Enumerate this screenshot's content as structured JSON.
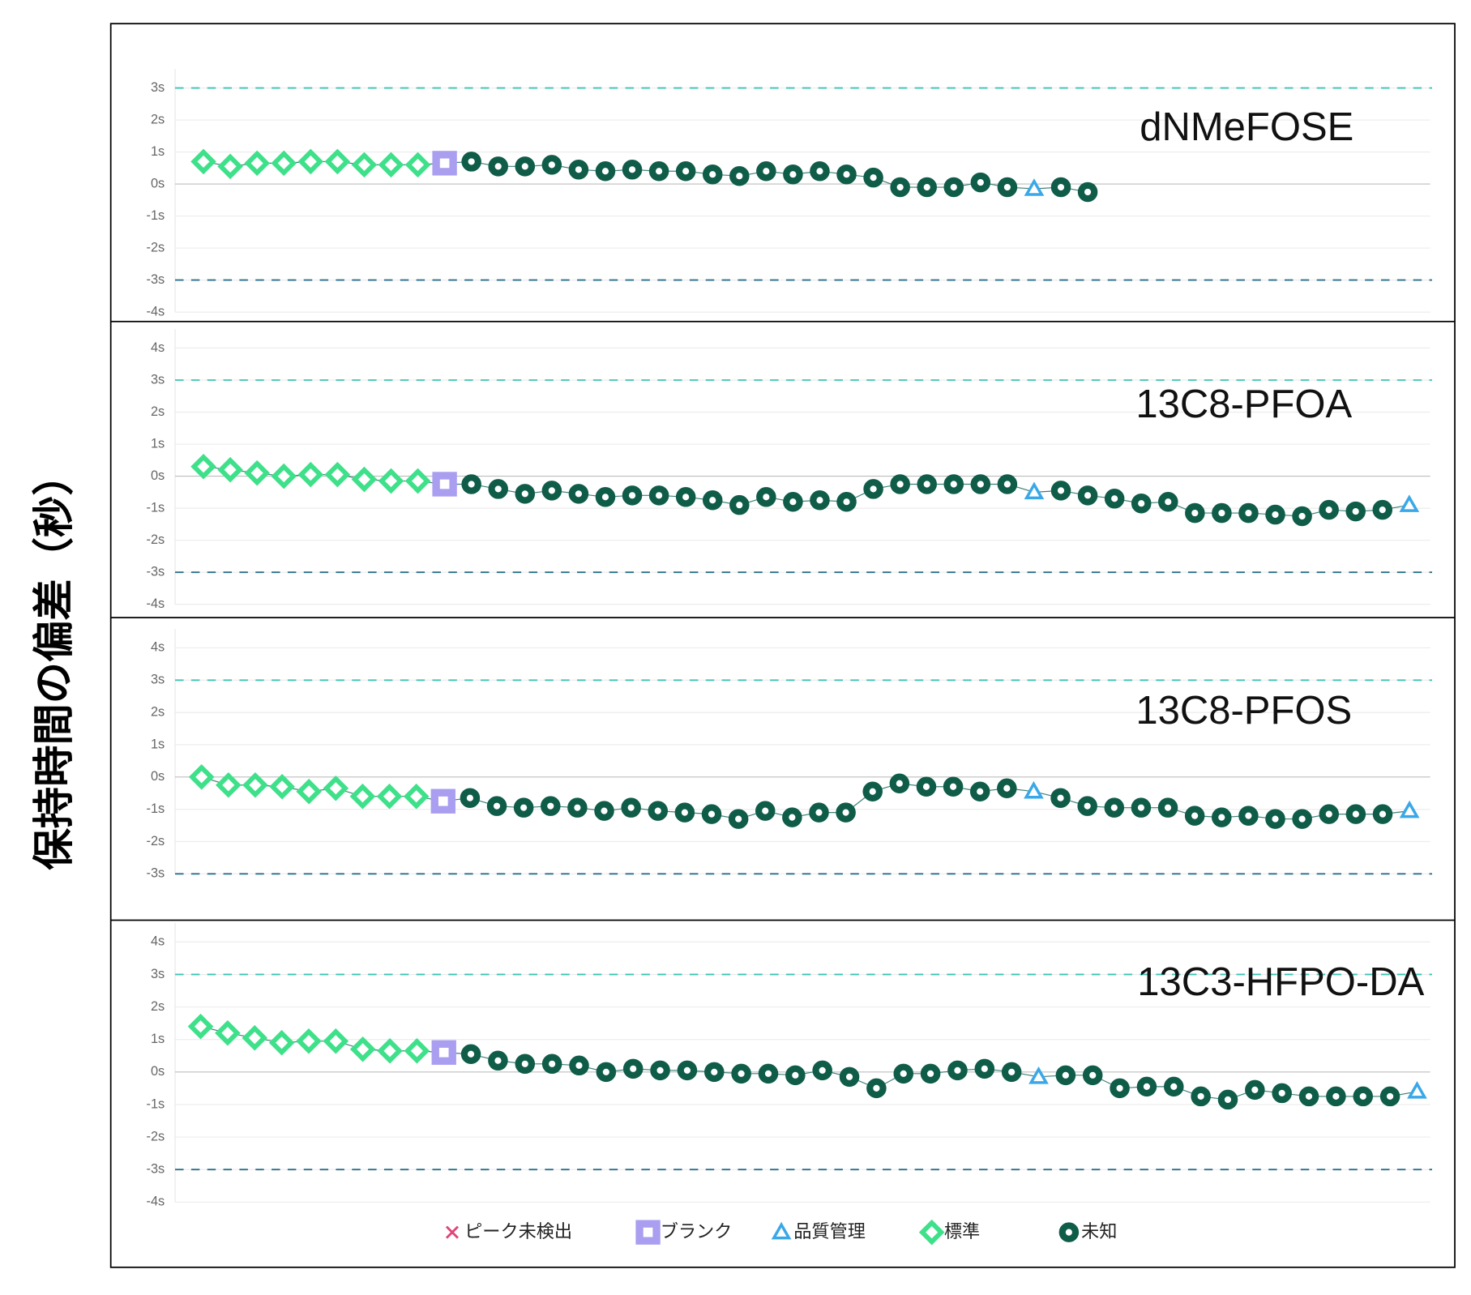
{
  "y_axis_title": "保持時間の偏差（秒）",
  "legend": [
    {
      "name": "ピーク未検出",
      "color": "#e0457b",
      "marker": "x"
    },
    {
      "name": "ブランク",
      "color": "#a99ef0",
      "marker": "square"
    },
    {
      "name": "品質管理",
      "color": "#3aa8e8",
      "marker": "triangle"
    },
    {
      "name": "標準",
      "color": "#3ee08a",
      "marker": "diamond"
    },
    {
      "name": "未知",
      "color": "#0f5c48",
      "marker": "circle"
    }
  ],
  "chart_data": [
    {
      "type": "line",
      "title": "dNMeFOSE",
      "ylim": [
        -4,
        3
      ],
      "grid": true,
      "limit_lines": [
        3,
        -3
      ],
      "yticks": [
        {
          "value": 3,
          "label": "3s"
        },
        {
          "value": 2,
          "label": "2s"
        },
        {
          "value": 1,
          "label": "1s"
        },
        {
          "value": 0,
          "label": "0s"
        },
        {
          "value": -1,
          "label": "-1s"
        },
        {
          "value": -2,
          "label": "-2s"
        },
        {
          "value": -3,
          "label": "-3s"
        },
        {
          "value": -4,
          "label": "-4s"
        }
      ],
      "series": [
        {
          "name": "標準",
          "values": [
            0.7,
            0.55,
            0.65,
            0.65,
            0.7,
            0.7,
            0.6,
            0.6,
            0.6,
            null,
            null,
            null,
            null,
            null,
            null,
            null,
            null,
            null,
            null,
            null,
            null,
            null,
            null,
            null,
            null,
            null,
            null,
            null,
            null,
            null,
            null,
            null,
            null,
            null
          ]
        },
        {
          "name": "ブランク",
          "values": [
            null,
            null,
            null,
            null,
            null,
            null,
            null,
            null,
            null,
            0.65,
            null,
            null,
            null,
            null,
            null,
            null,
            null,
            null,
            null,
            null,
            null,
            null,
            null,
            null,
            null,
            null,
            null,
            null,
            null,
            null,
            null,
            null,
            null,
            null
          ]
        },
        {
          "name": "未知",
          "values": [
            null,
            null,
            null,
            null,
            null,
            null,
            null,
            null,
            null,
            null,
            0.7,
            0.55,
            0.55,
            0.6,
            0.45,
            0.4,
            0.45,
            0.4,
            0.4,
            0.3,
            0.25,
            0.4,
            0.3,
            0.4,
            0.3,
            0.2,
            -0.1,
            -0.1,
            -0.1,
            0.05,
            -0.1,
            null,
            -0.1,
            -0.25
          ]
        },
        {
          "name": "品質管理",
          "values": [
            null,
            null,
            null,
            null,
            null,
            null,
            null,
            null,
            null,
            null,
            null,
            null,
            null,
            null,
            null,
            null,
            null,
            null,
            null,
            null,
            null,
            null,
            null,
            null,
            null,
            null,
            null,
            null,
            null,
            null,
            null,
            -0.15,
            null,
            null
          ]
        }
      ]
    },
    {
      "type": "line",
      "title": "13C8-PFOA",
      "ylim": [
        -4,
        4
      ],
      "grid": true,
      "limit_lines": [
        3,
        -3
      ],
      "yticks": [
        {
          "value": 4,
          "label": "4s"
        },
        {
          "value": 3,
          "label": "3s"
        },
        {
          "value": 2,
          "label": "2s"
        },
        {
          "value": 1,
          "label": "1s"
        },
        {
          "value": 0,
          "label": "0s"
        },
        {
          "value": -1,
          "label": "-1s"
        },
        {
          "value": -2,
          "label": "-2s"
        },
        {
          "value": -3,
          "label": "-3s"
        },
        {
          "value": -4,
          "label": "-4s"
        }
      ],
      "series": [
        {
          "name": "標準",
          "values": [
            0.3,
            0.2,
            0.1,
            0,
            0.05,
            0.05,
            -0.1,
            -0.15,
            -0.15,
            null,
            null,
            null,
            null,
            null,
            null,
            null,
            null,
            null,
            null,
            null,
            null,
            null,
            null,
            null,
            null,
            null,
            null,
            null,
            null,
            null,
            null,
            null,
            null,
            null,
            null,
            null,
            null,
            null,
            null,
            null,
            null,
            null,
            null,
            null,
            null,
            null
          ]
        },
        {
          "name": "ブランク",
          "values": [
            null,
            null,
            null,
            null,
            null,
            null,
            null,
            null,
            null,
            -0.25,
            null,
            null,
            null,
            null,
            null,
            null,
            null,
            null,
            null,
            null,
            null,
            null,
            null,
            null,
            null,
            null,
            null,
            null,
            null,
            null,
            null,
            null,
            null,
            null,
            null,
            null,
            null,
            null,
            null,
            null,
            null,
            null,
            null,
            null,
            null,
            null
          ]
        },
        {
          "name": "未知",
          "values": [
            null,
            null,
            null,
            null,
            null,
            null,
            null,
            null,
            null,
            null,
            -0.25,
            -0.4,
            -0.55,
            -0.45,
            -0.55,
            -0.65,
            -0.6,
            -0.6,
            -0.65,
            -0.75,
            -0.9,
            -0.65,
            -0.8,
            -0.75,
            -0.8,
            -0.4,
            -0.25,
            -0.25,
            -0.25,
            -0.25,
            -0.25,
            null,
            -0.45,
            -0.6,
            -0.7,
            -0.85,
            -0.8,
            -1.15,
            -1.15,
            -1.15,
            -1.2,
            -1.25,
            -1.05,
            -1.1,
            -1.05,
            null
          ]
        },
        {
          "name": "品質管理",
          "values": [
            null,
            null,
            null,
            null,
            null,
            null,
            null,
            null,
            null,
            null,
            null,
            null,
            null,
            null,
            null,
            null,
            null,
            null,
            null,
            null,
            null,
            null,
            null,
            null,
            null,
            null,
            null,
            null,
            null,
            null,
            null,
            -0.5,
            null,
            null,
            null,
            null,
            null,
            null,
            null,
            null,
            null,
            null,
            null,
            null,
            null,
            -0.9
          ]
        }
      ]
    },
    {
      "type": "line",
      "title": "13C8-PFOS",
      "ylim": [
        -3,
        4
      ],
      "grid": true,
      "limit_lines": [
        3,
        -3
      ],
      "yticks": [
        {
          "value": 4,
          "label": "4s"
        },
        {
          "value": 3,
          "label": "3s"
        },
        {
          "value": 2,
          "label": "2s"
        },
        {
          "value": 1,
          "label": "1s"
        },
        {
          "value": 0,
          "label": "0s"
        },
        {
          "value": -1,
          "label": "-1s"
        },
        {
          "value": -2,
          "label": "-2s"
        },
        {
          "value": -3,
          "label": "-3s"
        }
      ],
      "series": [
        {
          "name": "標準",
          "values": [
            0,
            -0.25,
            -0.25,
            -0.3,
            -0.45,
            -0.35,
            -0.6,
            -0.6,
            -0.6,
            null,
            null,
            null,
            null,
            null,
            null,
            null,
            null,
            null,
            null,
            null,
            null,
            null,
            null,
            null,
            null,
            null,
            null,
            null,
            null,
            null,
            null,
            null,
            null,
            null,
            null,
            null,
            null,
            null,
            null,
            null,
            null,
            null,
            null,
            null,
            null,
            null
          ]
        },
        {
          "name": "ブランク",
          "values": [
            null,
            null,
            null,
            null,
            null,
            null,
            null,
            null,
            null,
            -0.75,
            null,
            null,
            null,
            null,
            null,
            null,
            null,
            null,
            null,
            null,
            null,
            null,
            null,
            null,
            null,
            null,
            null,
            null,
            null,
            null,
            null,
            null,
            null,
            null,
            null,
            null,
            null,
            null,
            null,
            null,
            null,
            null,
            null,
            null,
            null,
            null
          ]
        },
        {
          "name": "未知",
          "values": [
            null,
            null,
            null,
            null,
            null,
            null,
            null,
            null,
            null,
            null,
            -0.65,
            -0.9,
            -0.95,
            -0.9,
            -0.95,
            -1.05,
            -0.95,
            -1.05,
            -1.1,
            -1.15,
            -1.3,
            -1.05,
            -1.25,
            -1.1,
            -1.1,
            -0.45,
            -0.2,
            -0.3,
            -0.3,
            -0.45,
            -0.35,
            null,
            -0.65,
            -0.9,
            -0.95,
            -0.95,
            -0.95,
            -1.2,
            -1.25,
            -1.2,
            -1.3,
            -1.3,
            -1.15,
            -1.15,
            -1.15,
            null
          ]
        },
        {
          "name": "品質管理",
          "values": [
            null,
            null,
            null,
            null,
            null,
            null,
            null,
            null,
            null,
            null,
            null,
            null,
            null,
            null,
            null,
            null,
            null,
            null,
            null,
            null,
            null,
            null,
            null,
            null,
            null,
            null,
            null,
            null,
            null,
            null,
            null,
            -0.45,
            null,
            null,
            null,
            null,
            null,
            null,
            null,
            null,
            null,
            null,
            null,
            null,
            null,
            -1.05
          ]
        }
      ]
    },
    {
      "type": "line",
      "title": "13C3-HFPO-DA",
      "ylim": [
        -4,
        4
      ],
      "grid": true,
      "limit_lines": [
        3,
        -3
      ],
      "yticks": [
        {
          "value": 4,
          "label": "4s"
        },
        {
          "value": 3,
          "label": "3s"
        },
        {
          "value": 2,
          "label": "2s"
        },
        {
          "value": 1,
          "label": "1s"
        },
        {
          "value": 0,
          "label": "0s"
        },
        {
          "value": -1,
          "label": "-1s"
        },
        {
          "value": -2,
          "label": "-2s"
        },
        {
          "value": -3,
          "label": "-3s"
        },
        {
          "value": -4,
          "label": "-4s"
        }
      ],
      "series": [
        {
          "name": "標準",
          "values": [
            1.4,
            1.2,
            1.05,
            0.9,
            0.95,
            0.95,
            0.7,
            0.65,
            0.65,
            null,
            null,
            null,
            null,
            null,
            null,
            null,
            null,
            null,
            null,
            null,
            null,
            null,
            null,
            null,
            null,
            null,
            null,
            null,
            null,
            null,
            null,
            null,
            null,
            null,
            null,
            null,
            null,
            null,
            null,
            null,
            null,
            null,
            null,
            null,
            null,
            null
          ]
        },
        {
          "name": "ブランク",
          "values": [
            null,
            null,
            null,
            null,
            null,
            null,
            null,
            null,
            null,
            0.6,
            null,
            null,
            null,
            null,
            null,
            null,
            null,
            null,
            null,
            null,
            null,
            null,
            null,
            null,
            null,
            null,
            null,
            null,
            null,
            null,
            null,
            null,
            null,
            null,
            null,
            null,
            null,
            null,
            null,
            null,
            null,
            null,
            null,
            null,
            null,
            null
          ]
        },
        {
          "name": "未知",
          "values": [
            null,
            null,
            null,
            null,
            null,
            null,
            null,
            null,
            null,
            null,
            0.55,
            0.35,
            0.25,
            0.25,
            0.2,
            0,
            0.1,
            0.05,
            0.05,
            0,
            -0.05,
            -0.05,
            -0.1,
            0.05,
            -0.15,
            -0.5,
            -0.05,
            -0.05,
            0.05,
            0.1,
            0,
            null,
            -0.1,
            -0.1,
            -0.5,
            -0.45,
            -0.45,
            -0.75,
            -0.85,
            -0.55,
            -0.65,
            -0.75,
            -0.75,
            -0.75,
            -0.75,
            null
          ]
        },
        {
          "name": "品質管理",
          "values": [
            null,
            null,
            null,
            null,
            null,
            null,
            null,
            null,
            null,
            null,
            null,
            null,
            null,
            null,
            null,
            null,
            null,
            null,
            null,
            null,
            null,
            null,
            null,
            null,
            null,
            null,
            null,
            null,
            null,
            null,
            null,
            -0.15,
            null,
            null,
            null,
            null,
            null,
            null,
            null,
            null,
            null,
            null,
            null,
            null,
            null,
            -0.6
          ]
        }
      ]
    }
  ]
}
